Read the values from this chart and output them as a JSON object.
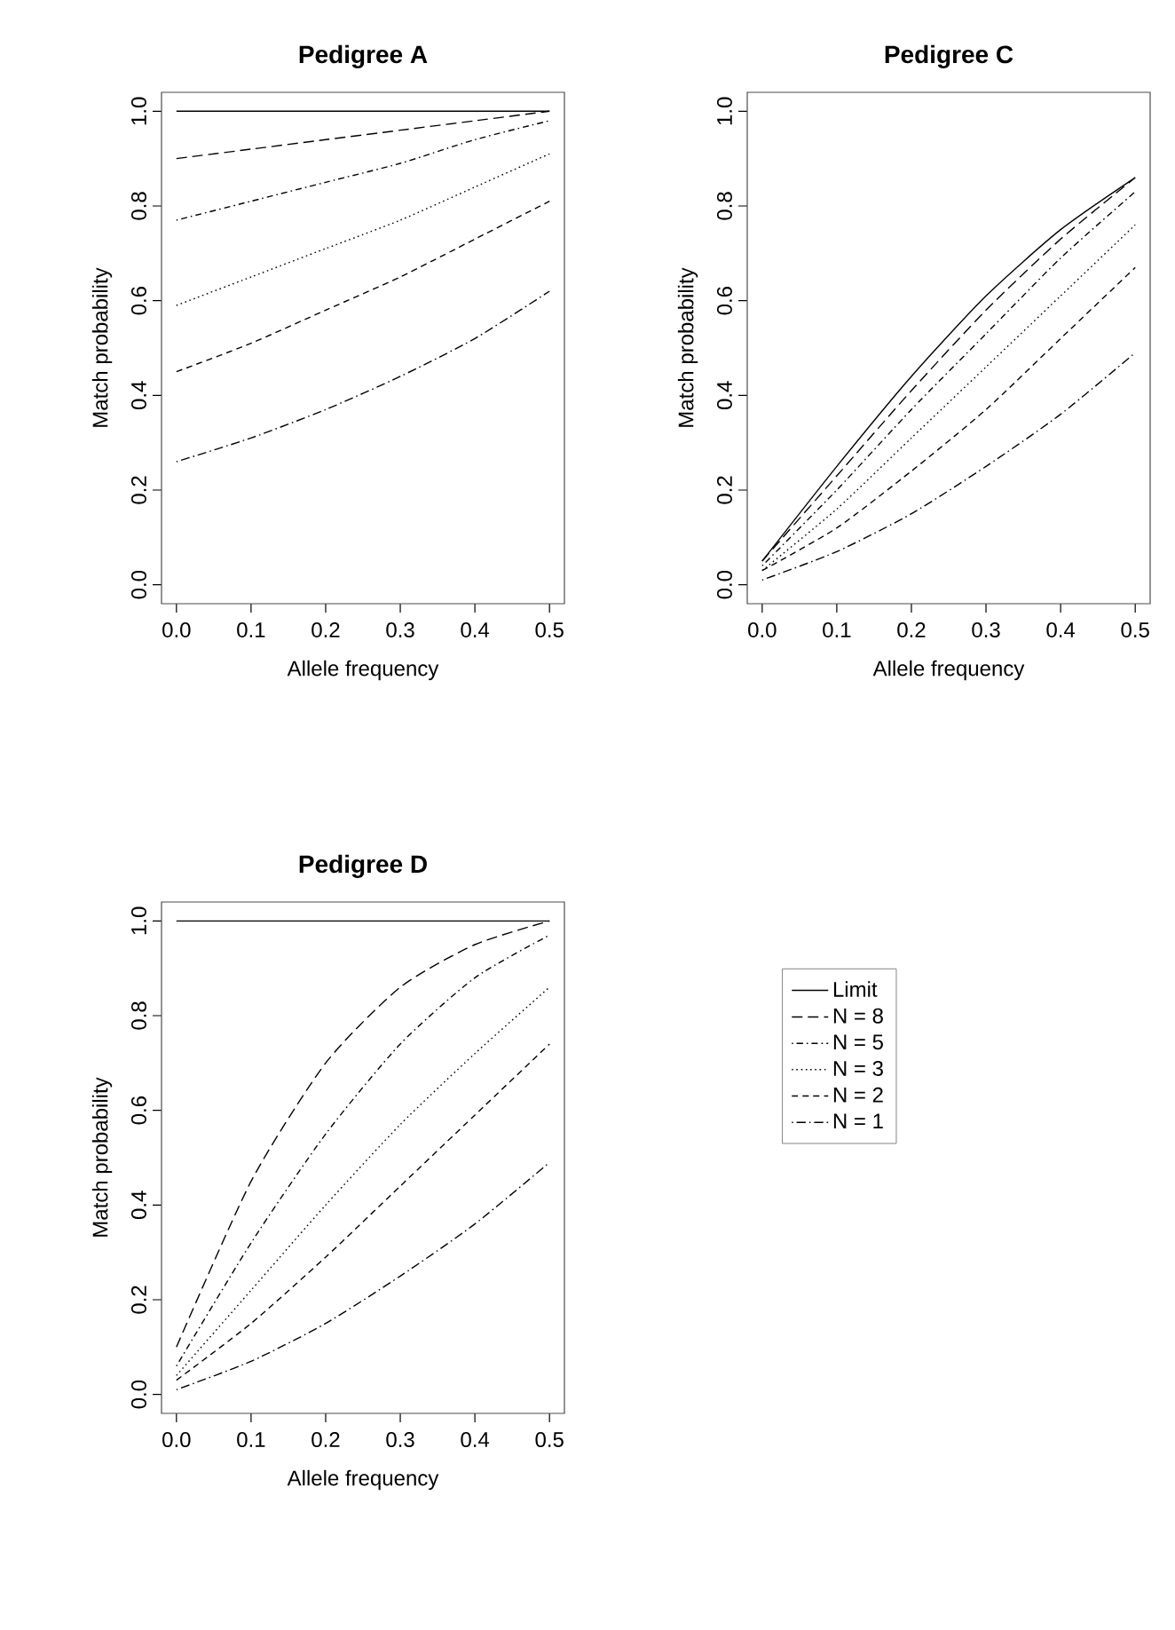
{
  "chart_data": [
    {
      "type": "line",
      "title": "Pedigree A",
      "xlabel": "Allele frequency",
      "ylabel": "Match probability",
      "x": [
        0,
        0.1,
        0.2,
        0.3,
        0.4,
        0.5
      ],
      "xlim": [
        -0.02,
        0.52
      ],
      "ylim": [
        -0.04,
        1.04
      ],
      "xticks": [
        {
          "value": 0,
          "label": "0.0"
        },
        {
          "value": 0.1,
          "label": "0.1"
        },
        {
          "value": 0.2,
          "label": "0.2"
        },
        {
          "value": 0.3,
          "label": "0.3"
        },
        {
          "value": 0.4,
          "label": "0.4"
        },
        {
          "value": 0.5,
          "label": "0.5"
        }
      ],
      "yticks": [
        {
          "value": 0,
          "label": "0.0"
        },
        {
          "value": 0.2,
          "label": "0.2"
        },
        {
          "value": 0.4,
          "label": "0.4"
        },
        {
          "value": 0.6,
          "label": "0.6"
        },
        {
          "value": 0.8,
          "label": "0.8"
        },
        {
          "value": 1,
          "label": "1.0"
        }
      ],
      "series": [
        {
          "color": "#000000",
          "line_style": "solid",
          "values": [
            1,
            1,
            1,
            1,
            1,
            1
          ]
        },
        {
          "color": "#000000",
          "line_style": "longdash",
          "values": [
            0.9,
            0.92,
            0.94,
            0.96,
            0.98,
            1.0
          ]
        },
        {
          "color": "#000000",
          "line_style": "dotdash",
          "values": [
            0.77,
            0.81,
            0.85,
            0.89,
            0.94,
            0.98
          ]
        },
        {
          "color": "#000000",
          "line_style": "dotted",
          "values": [
            0.59,
            0.65,
            0.71,
            0.77,
            0.84,
            0.91
          ]
        },
        {
          "color": "#000000",
          "line_style": "dashed",
          "values": [
            0.45,
            0.51,
            0.58,
            0.65,
            0.73,
            0.81
          ]
        },
        {
          "color": "#000000",
          "line_style": "dashdot",
          "values": [
            0.26,
            0.31,
            0.37,
            0.44,
            0.52,
            0.62
          ]
        }
      ]
    },
    {
      "type": "line",
      "title": "Pedigree C",
      "xlabel": "Allele frequency",
      "ylabel": "Match probability",
      "x": [
        0,
        0.1,
        0.2,
        0.3,
        0.4,
        0.5
      ],
      "xlim": [
        -0.02,
        0.52
      ],
      "ylim": [
        -0.04,
        1.04
      ],
      "xticks": [
        {
          "value": 0,
          "label": "0.0"
        },
        {
          "value": 0.1,
          "label": "0.1"
        },
        {
          "value": 0.2,
          "label": "0.2"
        },
        {
          "value": 0.3,
          "label": "0.3"
        },
        {
          "value": 0.4,
          "label": "0.4"
        },
        {
          "value": 0.5,
          "label": "0.5"
        }
      ],
      "yticks": [
        {
          "value": 0,
          "label": "0.0"
        },
        {
          "value": 0.2,
          "label": "0.2"
        },
        {
          "value": 0.4,
          "label": "0.4"
        },
        {
          "value": 0.6,
          "label": "0.6"
        },
        {
          "value": 0.8,
          "label": "0.8"
        },
        {
          "value": 1,
          "label": "1.0"
        }
      ],
      "series": [
        {
          "color": "#000000",
          "line_style": "solid",
          "values": [
            0.05,
            0.25,
            0.44,
            0.61,
            0.75,
            0.86
          ]
        },
        {
          "color": "#000000",
          "line_style": "longdash",
          "values": [
            0.05,
            0.23,
            0.41,
            0.58,
            0.73,
            0.86
          ]
        },
        {
          "color": "#000000",
          "line_style": "dotdash",
          "values": [
            0.04,
            0.2,
            0.37,
            0.53,
            0.69,
            0.83
          ]
        },
        {
          "color": "#000000",
          "line_style": "dotted",
          "values": [
            0.03,
            0.16,
            0.31,
            0.46,
            0.61,
            0.76
          ]
        },
        {
          "color": "#000000",
          "line_style": "dashed",
          "values": [
            0.03,
            0.12,
            0.24,
            0.37,
            0.52,
            0.67
          ]
        },
        {
          "color": "#000000",
          "line_style": "dashdot",
          "values": [
            0.01,
            0.07,
            0.15,
            0.25,
            0.36,
            0.49
          ]
        }
      ]
    },
    {
      "type": "line",
      "title": "Pedigree D",
      "xlabel": "Allele frequency",
      "ylabel": "Match probability",
      "x": [
        0,
        0.1,
        0.2,
        0.3,
        0.4,
        0.5
      ],
      "xlim": [
        -0.02,
        0.52
      ],
      "ylim": [
        -0.04,
        1.04
      ],
      "xticks": [
        {
          "value": 0,
          "label": "0.0"
        },
        {
          "value": 0.1,
          "label": "0.1"
        },
        {
          "value": 0.2,
          "label": "0.2"
        },
        {
          "value": 0.3,
          "label": "0.3"
        },
        {
          "value": 0.4,
          "label": "0.4"
        },
        {
          "value": 0.5,
          "label": "0.5"
        }
      ],
      "yticks": [
        {
          "value": 0,
          "label": "0.0"
        },
        {
          "value": 0.2,
          "label": "0.2"
        },
        {
          "value": 0.4,
          "label": "0.4"
        },
        {
          "value": 0.6,
          "label": "0.6"
        },
        {
          "value": 0.8,
          "label": "0.8"
        },
        {
          "value": 1,
          "label": "1.0"
        }
      ],
      "legend": "right",
      "series": [
        {
          "name": "Limit",
          "color": "#000000",
          "line_style": "solid",
          "values": [
            1,
            1,
            1,
            1,
            1,
            1
          ]
        },
        {
          "name": "N = 8",
          "color": "#000000",
          "line_style": "longdash",
          "values": [
            0.1,
            0.45,
            0.7,
            0.86,
            0.95,
            1.0
          ]
        },
        {
          "name": "N = 5",
          "color": "#000000",
          "line_style": "dotdash",
          "values": [
            0.06,
            0.32,
            0.55,
            0.74,
            0.88,
            0.97
          ]
        },
        {
          "name": "N = 3",
          "color": "#000000",
          "line_style": "dotted",
          "values": [
            0.04,
            0.22,
            0.4,
            0.57,
            0.72,
            0.86
          ]
        },
        {
          "name": "N = 2",
          "color": "#000000",
          "line_style": "dashed",
          "values": [
            0.03,
            0.15,
            0.29,
            0.44,
            0.59,
            0.74
          ]
        },
        {
          "name": "N = 1",
          "color": "#000000",
          "line_style": "dashdot",
          "values": [
            0.01,
            0.07,
            0.15,
            0.25,
            0.36,
            0.49
          ]
        }
      ]
    }
  ]
}
